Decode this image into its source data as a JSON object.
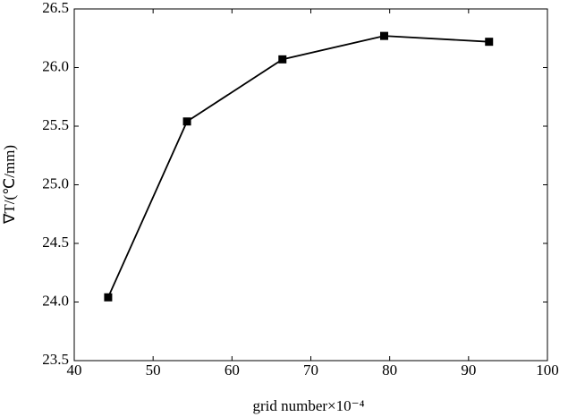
{
  "chart_data": {
    "type": "line",
    "x_label": "grid number×10⁻⁴",
    "y_label": "∇T/(℃/mm)",
    "x": [
      44.3,
      54.3,
      66.4,
      79.3,
      92.6
    ],
    "series": [
      {
        "color": "#000000",
        "values": [
          24.04,
          25.54,
          26.07,
          26.27,
          26.22
        ]
      }
    ],
    "xlim": [
      40,
      100
    ],
    "xticks": [
      40,
      50,
      60,
      70,
      80,
      90,
      100
    ],
    "ylim": [
      23.5,
      26.5
    ],
    "yticks": [
      23.5,
      {
        "value": 24,
        "label": "24.0"
      },
      24.5,
      {
        "value": 25,
        "label": "25.0"
      },
      25.5,
      {
        "value": 26,
        "label": "26.0"
      },
      26.5
    ],
    "grid": false
  }
}
